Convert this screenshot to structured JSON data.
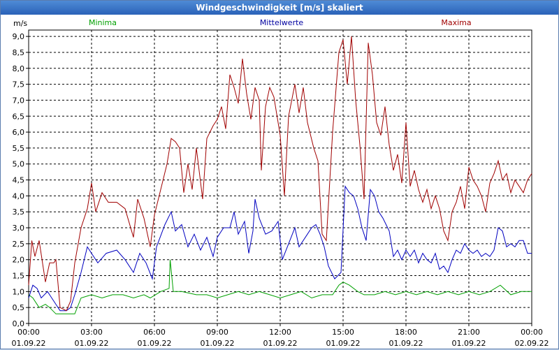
{
  "title": "Windgeschwindigkeit [m/s] skaliert",
  "chart_data": {
    "type": "line",
    "ylabel": "m/s",
    "ylim": [
      0,
      9.2
    ],
    "grid": true,
    "y_ticks": [
      "0,0",
      "0,5",
      "1,0",
      "1,5",
      "2,0",
      "2,5",
      "3,0",
      "3,5",
      "4,0",
      "4,5",
      "5,0",
      "5,5",
      "6,0",
      "6,5",
      "7,0",
      "7,5",
      "8,0",
      "8,5",
      "9,0"
    ],
    "y_tick_values": [
      0,
      0.5,
      1,
      1.5,
      2,
      2.5,
      3,
      3.5,
      4,
      4.5,
      5,
      5.5,
      6,
      6.5,
      7,
      7.5,
      8,
      8.5,
      9
    ],
    "x_ticks": [
      {
        "hour": 0,
        "time": "00:00",
        "date": "01.09.22"
      },
      {
        "hour": 3,
        "time": "03:00",
        "date": "01.09.22"
      },
      {
        "hour": 6,
        "time": "06:00",
        "date": "01.09.22"
      },
      {
        "hour": 9,
        "time": "09:00",
        "date": "01.09.22"
      },
      {
        "hour": 12,
        "time": "12:00",
        "date": "01.09.22"
      },
      {
        "hour": 15,
        "time": "15:00",
        "date": "01.09.22"
      },
      {
        "hour": 18,
        "time": "18:00",
        "date": "01.09.22"
      },
      {
        "hour": 21,
        "time": "21:00",
        "date": "01.09.22"
      },
      {
        "hour": 24,
        "time": "00:00",
        "date": "02.09.22"
      }
    ],
    "xlim": [
      0,
      24
    ],
    "legend": [
      {
        "name": "Minima",
        "color": "#00a000"
      },
      {
        "name": "Mittelwerte",
        "color": "#0000a0"
      },
      {
        "name": "Maxima",
        "color": "#a00000"
      }
    ],
    "series": [
      {
        "name": "Minima",
        "color": "#00a000",
        "points": [
          [
            0,
            0.9
          ],
          [
            0.2,
            0.8
          ],
          [
            0.5,
            0.5
          ],
          [
            0.8,
            0.6
          ],
          [
            1.0,
            0.5
          ],
          [
            1.3,
            0.3
          ],
          [
            1.7,
            0.3
          ],
          [
            2.2,
            0.3
          ],
          [
            2.5,
            0.8
          ],
          [
            3.0,
            0.9
          ],
          [
            3.5,
            0.8
          ],
          [
            4.0,
            0.9
          ],
          [
            4.5,
            0.9
          ],
          [
            5.0,
            0.8
          ],
          [
            5.5,
            0.9
          ],
          [
            5.8,
            0.8
          ],
          [
            6.3,
            1.0
          ],
          [
            6.7,
            1.1
          ],
          [
            6.75,
            2.0
          ],
          [
            6.9,
            1.0
          ],
          [
            7.3,
            1.0
          ],
          [
            8.0,
            0.9
          ],
          [
            8.5,
            0.9
          ],
          [
            9.0,
            0.8
          ],
          [
            9.5,
            0.9
          ],
          [
            10.0,
            1.0
          ],
          [
            10.5,
            0.9
          ],
          [
            11.0,
            1.0
          ],
          [
            11.5,
            0.9
          ],
          [
            12.0,
            0.8
          ],
          [
            12.5,
            0.9
          ],
          [
            13.0,
            1.0
          ],
          [
            13.5,
            0.8
          ],
          [
            14.0,
            0.9
          ],
          [
            14.5,
            0.9
          ],
          [
            14.8,
            1.2
          ],
          [
            15.0,
            1.3
          ],
          [
            15.3,
            1.2
          ],
          [
            15.7,
            1.0
          ],
          [
            16.0,
            0.9
          ],
          [
            16.5,
            0.9
          ],
          [
            17.0,
            1.0
          ],
          [
            17.5,
            0.9
          ],
          [
            18.0,
            1.0
          ],
          [
            18.5,
            0.9
          ],
          [
            19.0,
            1.0
          ],
          [
            19.5,
            0.9
          ],
          [
            20.0,
            1.0
          ],
          [
            20.5,
            0.9
          ],
          [
            21.0,
            1.0
          ],
          [
            21.5,
            0.9
          ],
          [
            22.0,
            1.0
          ],
          [
            22.5,
            1.2
          ],
          [
            23.0,
            0.9
          ],
          [
            23.5,
            1.0
          ],
          [
            24.0,
            1.0
          ]
        ]
      },
      {
        "name": "Mittelwerte",
        "color": "#0000c0",
        "points": [
          [
            0,
            0.8
          ],
          [
            0.2,
            1.2
          ],
          [
            0.4,
            1.1
          ],
          [
            0.6,
            0.8
          ],
          [
            0.9,
            1.0
          ],
          [
            1.1,
            0.8
          ],
          [
            1.3,
            0.6
          ],
          [
            1.5,
            0.4
          ],
          [
            1.8,
            0.4
          ],
          [
            2.0,
            0.5
          ],
          [
            2.2,
            0.9
          ],
          [
            2.5,
            1.6
          ],
          [
            2.8,
            2.4
          ],
          [
            3.0,
            2.2
          ],
          [
            3.3,
            1.9
          ],
          [
            3.7,
            2.2
          ],
          [
            4.2,
            2.3
          ],
          [
            4.6,
            2.0
          ],
          [
            5.0,
            1.6
          ],
          [
            5.3,
            2.2
          ],
          [
            5.6,
            1.9
          ],
          [
            5.9,
            1.4
          ],
          [
            6.1,
            2.4
          ],
          [
            6.5,
            3.1
          ],
          [
            6.8,
            3.5
          ],
          [
            7.0,
            2.9
          ],
          [
            7.3,
            3.1
          ],
          [
            7.6,
            2.4
          ],
          [
            7.9,
            2.8
          ],
          [
            8.2,
            2.3
          ],
          [
            8.5,
            2.7
          ],
          [
            8.8,
            2.1
          ],
          [
            9.0,
            2.7
          ],
          [
            9.3,
            3.0
          ],
          [
            9.6,
            3.0
          ],
          [
            9.8,
            3.5
          ],
          [
            10.0,
            2.8
          ],
          [
            10.3,
            3.2
          ],
          [
            10.5,
            2.2
          ],
          [
            10.7,
            2.9
          ],
          [
            10.8,
            3.9
          ],
          [
            11.0,
            3.3
          ],
          [
            11.3,
            2.8
          ],
          [
            11.6,
            2.9
          ],
          [
            11.9,
            3.2
          ],
          [
            12.1,
            2.0
          ],
          [
            12.4,
            2.5
          ],
          [
            12.7,
            3.0
          ],
          [
            12.9,
            2.4
          ],
          [
            13.2,
            2.7
          ],
          [
            13.5,
            3.0
          ],
          [
            13.7,
            3.1
          ],
          [
            13.9,
            2.8
          ],
          [
            14.1,
            2.4
          ],
          [
            14.3,
            1.8
          ],
          [
            14.6,
            1.4
          ],
          [
            14.9,
            1.6
          ],
          [
            15.1,
            4.3
          ],
          [
            15.3,
            4.1
          ],
          [
            15.5,
            4.0
          ],
          [
            15.7,
            3.6
          ],
          [
            15.9,
            3.0
          ],
          [
            16.1,
            2.6
          ],
          [
            16.3,
            4.2
          ],
          [
            16.5,
            4.0
          ],
          [
            16.7,
            3.5
          ],
          [
            16.9,
            3.3
          ],
          [
            17.2,
            2.9
          ],
          [
            17.4,
            2.1
          ],
          [
            17.6,
            2.3
          ],
          [
            17.8,
            2.0
          ],
          [
            18.0,
            2.3
          ],
          [
            18.2,
            2.1
          ],
          [
            18.4,
            2.3
          ],
          [
            18.6,
            1.9
          ],
          [
            18.8,
            2.2
          ],
          [
            19.0,
            2.0
          ],
          [
            19.2,
            1.9
          ],
          [
            19.4,
            2.2
          ],
          [
            19.6,
            1.7
          ],
          [
            19.8,
            1.8
          ],
          [
            20.0,
            1.6
          ],
          [
            20.2,
            2.0
          ],
          [
            20.4,
            2.3
          ],
          [
            20.6,
            2.2
          ],
          [
            20.8,
            2.5
          ],
          [
            21.0,
            2.3
          ],
          [
            21.2,
            2.2
          ],
          [
            21.4,
            2.3
          ],
          [
            21.6,
            2.1
          ],
          [
            21.8,
            2.2
          ],
          [
            22.0,
            2.1
          ],
          [
            22.2,
            2.3
          ],
          [
            22.4,
            3.0
          ],
          [
            22.6,
            2.9
          ],
          [
            22.8,
            2.4
          ],
          [
            23.0,
            2.5
          ],
          [
            23.2,
            2.4
          ],
          [
            23.4,
            2.6
          ],
          [
            23.6,
            2.6
          ],
          [
            23.8,
            2.2
          ],
          [
            24.0,
            2.2
          ]
        ]
      },
      {
        "name": "Maxima",
        "color": "#a00000",
        "points": [
          [
            0,
            1.2
          ],
          [
            0.15,
            2.6
          ],
          [
            0.3,
            2.1
          ],
          [
            0.5,
            2.6
          ],
          [
            0.8,
            1.3
          ],
          [
            1.0,
            1.9
          ],
          [
            1.2,
            1.9
          ],
          [
            1.3,
            2.0
          ],
          [
            1.5,
            0.5
          ],
          [
            1.8,
            0.4
          ],
          [
            2.0,
            0.7
          ],
          [
            2.2,
            1.9
          ],
          [
            2.5,
            3.0
          ],
          [
            2.8,
            3.6
          ],
          [
            3.0,
            4.4
          ],
          [
            3.2,
            3.5
          ],
          [
            3.5,
            4.1
          ],
          [
            3.8,
            3.8
          ],
          [
            4.2,
            3.8
          ],
          [
            4.6,
            3.6
          ],
          [
            5.0,
            2.7
          ],
          [
            5.2,
            3.9
          ],
          [
            5.5,
            3.3
          ],
          [
            5.8,
            2.4
          ],
          [
            6.0,
            3.4
          ],
          [
            6.3,
            4.2
          ],
          [
            6.6,
            5.0
          ],
          [
            6.8,
            5.8
          ],
          [
            7.0,
            5.7
          ],
          [
            7.2,
            5.5
          ],
          [
            7.4,
            4.1
          ],
          [
            7.6,
            5.0
          ],
          [
            7.8,
            4.2
          ],
          [
            8.0,
            5.5
          ],
          [
            8.3,
            3.9
          ],
          [
            8.5,
            5.8
          ],
          [
            8.8,
            6.2
          ],
          [
            9.0,
            6.4
          ],
          [
            9.2,
            6.8
          ],
          [
            9.4,
            6.1
          ],
          [
            9.6,
            7.8
          ],
          [
            9.8,
            7.4
          ],
          [
            10.0,
            6.9
          ],
          [
            10.2,
            8.3
          ],
          [
            10.4,
            7.2
          ],
          [
            10.6,
            6.4
          ],
          [
            10.8,
            7.4
          ],
          [
            11.0,
            7.0
          ],
          [
            11.1,
            4.8
          ],
          [
            11.3,
            6.8
          ],
          [
            11.5,
            7.4
          ],
          [
            11.7,
            7.1
          ],
          [
            12.0,
            5.9
          ],
          [
            12.2,
            4.0
          ],
          [
            12.4,
            6.5
          ],
          [
            12.7,
            7.5
          ],
          [
            12.9,
            6.6
          ],
          [
            13.1,
            7.4
          ],
          [
            13.3,
            6.3
          ],
          [
            13.6,
            5.5
          ],
          [
            13.8,
            5.1
          ],
          [
            14.0,
            2.8
          ],
          [
            14.2,
            2.6
          ],
          [
            14.5,
            6.0
          ],
          [
            14.8,
            8.5
          ],
          [
            15.0,
            8.9
          ],
          [
            15.2,
            7.5
          ],
          [
            15.4,
            9.0
          ],
          [
            15.6,
            7.0
          ],
          [
            15.8,
            5.6
          ],
          [
            16.0,
            3.9
          ],
          [
            16.2,
            8.8
          ],
          [
            16.4,
            7.8
          ],
          [
            16.6,
            6.3
          ],
          [
            16.8,
            5.9
          ],
          [
            17.0,
            6.8
          ],
          [
            17.2,
            5.6
          ],
          [
            17.4,
            4.8
          ],
          [
            17.6,
            5.3
          ],
          [
            17.8,
            4.4
          ],
          [
            18.0,
            6.3
          ],
          [
            18.2,
            4.3
          ],
          [
            18.4,
            4.8
          ],
          [
            18.6,
            4.2
          ],
          [
            18.8,
            3.8
          ],
          [
            19.0,
            4.2
          ],
          [
            19.2,
            3.6
          ],
          [
            19.4,
            4.0
          ],
          [
            19.6,
            3.6
          ],
          [
            19.8,
            2.9
          ],
          [
            20.0,
            2.6
          ],
          [
            20.2,
            3.5
          ],
          [
            20.4,
            3.8
          ],
          [
            20.6,
            4.3
          ],
          [
            20.8,
            3.6
          ],
          [
            21.0,
            4.9
          ],
          [
            21.2,
            4.5
          ],
          [
            21.4,
            4.3
          ],
          [
            21.6,
            4.0
          ],
          [
            21.8,
            3.5
          ],
          [
            22.0,
            4.4
          ],
          [
            22.2,
            4.7
          ],
          [
            22.4,
            5.1
          ],
          [
            22.6,
            4.5
          ],
          [
            22.8,
            4.7
          ],
          [
            23.0,
            4.1
          ],
          [
            23.2,
            4.5
          ],
          [
            23.4,
            4.3
          ],
          [
            23.6,
            4.1
          ],
          [
            23.8,
            4.5
          ],
          [
            24.0,
            4.7
          ]
        ]
      }
    ]
  }
}
